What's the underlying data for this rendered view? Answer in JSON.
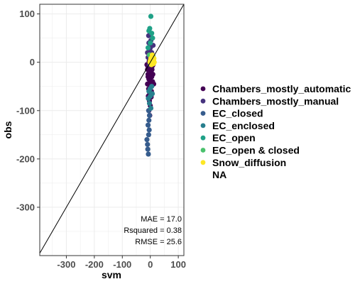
{
  "chart_data": {
    "type": "scatter",
    "xlabel": "svm",
    "ylabel": "obs",
    "xlim": [
      -395,
      120
    ],
    "ylim": [
      -400,
      120
    ],
    "x_ticks": [
      -300,
      -200,
      -100,
      0,
      100
    ],
    "y_ticks": [
      -300,
      -200,
      -100,
      0,
      100
    ],
    "grid": true,
    "identity_line": true,
    "legend_position": "right",
    "stats": [
      "MAE = 17.0",
      "Rsquared = 0.38",
      "RMSE = 25.6"
    ],
    "series": [
      {
        "name": "Chambers_mostly_automatic",
        "color": "#440154",
        "points": [
          [
            -12,
            -5
          ],
          [
            -10,
            -15
          ],
          [
            -8,
            -25
          ],
          [
            -5,
            -35
          ],
          [
            -3,
            -45
          ],
          [
            0,
            -10
          ],
          [
            3,
            -20
          ],
          [
            5,
            -30
          ],
          [
            8,
            -40
          ],
          [
            -6,
            -55
          ],
          [
            -2,
            -65
          ],
          [
            2,
            -50
          ],
          [
            6,
            -15
          ],
          [
            -9,
            -8
          ],
          [
            10,
            -5
          ],
          [
            -4,
            2
          ],
          [
            1,
            -2
          ],
          [
            4,
            -60
          ],
          [
            -7,
            -70
          ],
          [
            -3,
            -80
          ],
          [
            0,
            -90
          ],
          [
            -5,
            -100
          ],
          [
            -2,
            -110
          ],
          [
            -8,
            -30
          ],
          [
            9,
            -25
          ],
          [
            12,
            -45
          ],
          [
            -10,
            -45
          ],
          [
            -1,
            -38
          ],
          [
            3,
            -72
          ],
          [
            7,
            -8
          ]
        ]
      },
      {
        "name": "Chambers_mostly_manual",
        "color": "#46337e",
        "points": [
          [
            -5,
            40
          ],
          [
            0,
            30
          ],
          [
            5,
            20
          ],
          [
            -8,
            10
          ],
          [
            3,
            5
          ],
          [
            -3,
            -5
          ],
          [
            8,
            15
          ],
          [
            -2,
            25
          ],
          [
            2,
            45
          ],
          [
            -6,
            55
          ],
          [
            10,
            35
          ],
          [
            -10,
            20
          ]
        ]
      },
      {
        "name": "EC_closed",
        "color": "#365c8d",
        "points": [
          [
            -8,
            -130
          ],
          [
            -6,
            -150
          ],
          [
            -10,
            -170
          ],
          [
            -7,
            -190
          ],
          [
            -4,
            -140
          ],
          [
            -12,
            -160
          ],
          [
            -5,
            -120
          ],
          [
            -9,
            -180
          ],
          [
            -3,
            -110
          ],
          [
            -6,
            -100
          ]
        ]
      },
      {
        "name": "EC_enclosed",
        "color": "#277f8e",
        "points": [
          [
            -5,
            -60
          ],
          [
            0,
            -70
          ],
          [
            5,
            -50
          ],
          [
            -3,
            -85
          ],
          [
            2,
            -95
          ],
          [
            -7,
            -75
          ],
          [
            7,
            -65
          ],
          [
            -1,
            -55
          ]
        ]
      },
      {
        "name": "EC_open",
        "color": "#1fa187",
        "points": [
          [
            2,
            95
          ],
          [
            -5,
            65
          ],
          [
            5,
            60
          ],
          [
            -2,
            70
          ],
          [
            0,
            40
          ],
          [
            8,
            50
          ],
          [
            -8,
            30
          ]
        ]
      },
      {
        "name": "EC_open & closed",
        "color": "#4ac16d",
        "points": [
          [
            10,
            12
          ],
          [
            6,
            6
          ],
          [
            -3,
            15
          ]
        ]
      },
      {
        "name": "Snow_diffusion",
        "color": "#fde725",
        "points": [
          [
            5,
            5
          ],
          [
            10,
            2
          ],
          [
            3,
            0
          ],
          [
            8,
            8
          ],
          [
            12,
            4
          ],
          [
            6,
            -2
          ],
          [
            0,
            3
          ],
          [
            14,
            0
          ],
          [
            9,
            10
          ],
          [
            4,
            -5
          ],
          [
            11,
            -3
          ],
          [
            7,
            15
          ],
          [
            2,
            8
          ],
          [
            13,
            8
          ],
          [
            -1,
            0
          ]
        ]
      },
      {
        "name": "NA",
        "color": "#ffffff",
        "points": []
      }
    ]
  }
}
